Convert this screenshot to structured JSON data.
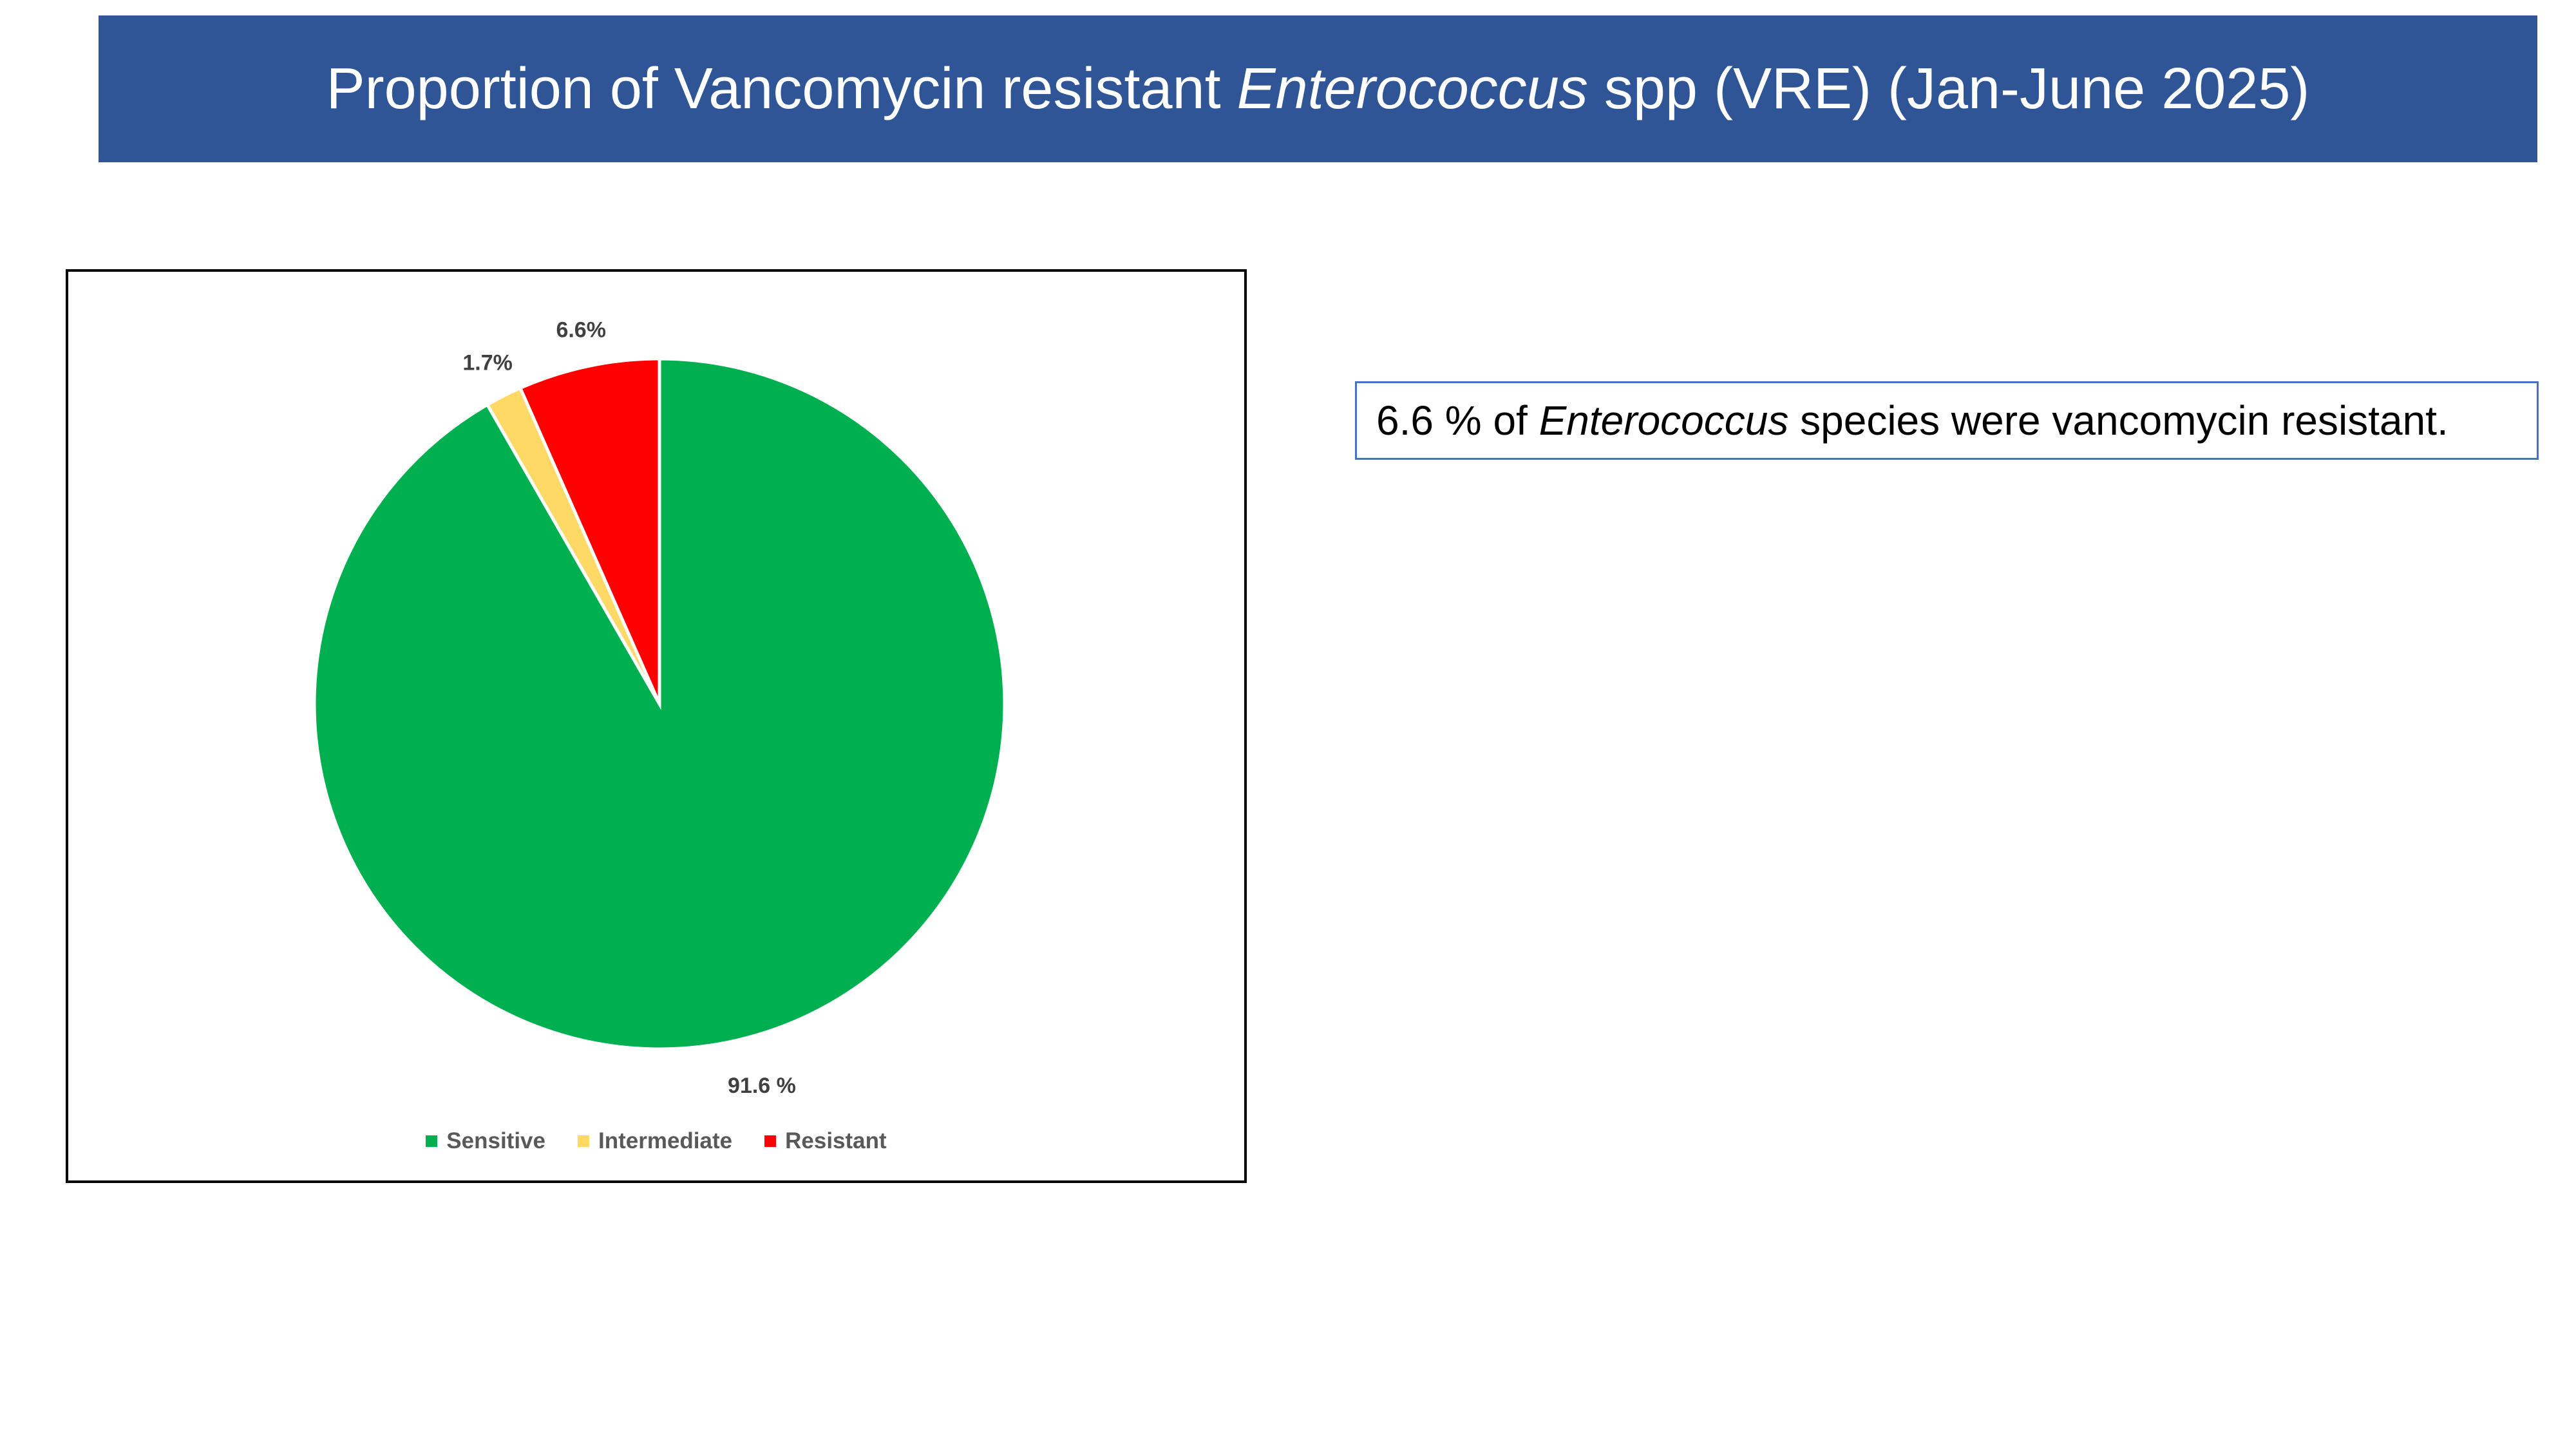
{
  "header": {
    "title_prefix": "Proportion of Vancomycin resistant ",
    "title_italic": "Enterococcus",
    "title_suffix": " spp (VRE) (Jan-June 2025)"
  },
  "note": {
    "prefix": "6.6 % of ",
    "italic": "Enterococcus",
    "suffix": " species were vancomycin resistant."
  },
  "colors": {
    "banner": "#2f5597",
    "note_border": "#4472c4"
  },
  "chart_data": {
    "type": "pie",
    "title": "",
    "slices": [
      {
        "name": "Sensitive",
        "value": 91.6,
        "label": "91.6 %",
        "color": "#00b050"
      },
      {
        "name": "Intermediate",
        "value": 1.7,
        "label": "1.7%",
        "color": "#ffd966"
      },
      {
        "name": "Resistant",
        "value": 6.6,
        "label": "6.6%",
        "color": "#ff0000"
      }
    ],
    "start_angle_deg": 0,
    "direction": "clockwise",
    "legend": {
      "position": "bottom",
      "entries": [
        "Sensitive",
        "Intermediate",
        "Resistant"
      ]
    }
  }
}
